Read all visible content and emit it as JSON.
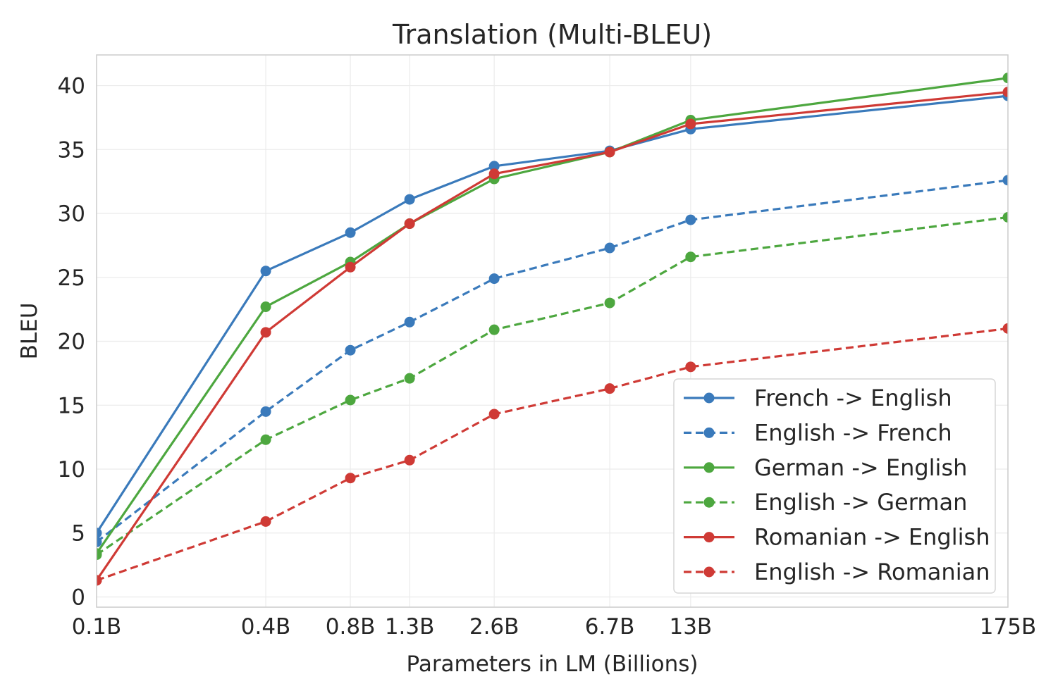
{
  "chart_data": {
    "type": "line",
    "title": "Translation (Multi-BLEU)",
    "xlabel": "Parameters in LM (Billions)",
    "ylabel": "BLEU",
    "x_scale": "log",
    "x": [
      0.1,
      0.4,
      0.8,
      1.3,
      2.6,
      6.7,
      13,
      175
    ],
    "x_tick_labels": [
      "0.1B",
      "0.4B",
      "0.8B",
      "1.3B",
      "2.6B",
      "6.7B",
      "13B",
      "175B"
    ],
    "y_ticks": [
      0,
      5,
      10,
      15,
      20,
      25,
      30,
      35,
      40
    ],
    "ylim": [
      -0.8,
      42.4
    ],
    "grid": true,
    "legend_position": "bottom-right",
    "series": [
      {
        "name": "French -> English",
        "color": "#3a7abb",
        "dashed": false,
        "values": [
          5.0,
          25.5,
          28.5,
          31.1,
          33.7,
          34.9,
          36.6,
          39.2
        ]
      },
      {
        "name": "English -> French",
        "color": "#3a7abb",
        "dashed": true,
        "values": [
          4.3,
          14.5,
          19.3,
          21.5,
          24.9,
          27.3,
          29.5,
          32.6
        ]
      },
      {
        "name": "German -> English",
        "color": "#4da73f",
        "dashed": false,
        "values": [
          3.4,
          22.7,
          26.2,
          29.2,
          32.7,
          34.8,
          37.3,
          40.6
        ]
      },
      {
        "name": "English -> German",
        "color": "#4da73f",
        "dashed": true,
        "values": [
          3.3,
          12.3,
          15.4,
          17.1,
          20.9,
          23.0,
          26.6,
          29.7
        ]
      },
      {
        "name": "Romanian -> English",
        "color": "#cf3a35",
        "dashed": false,
        "values": [
          1.3,
          20.7,
          25.8,
          29.2,
          33.1,
          34.8,
          37.0,
          39.5
        ]
      },
      {
        "name": "English -> Romanian",
        "color": "#cf3a35",
        "dashed": true,
        "values": [
          1.3,
          5.9,
          9.3,
          10.7,
          14.3,
          16.3,
          18.0,
          21.0
        ]
      }
    ]
  }
}
